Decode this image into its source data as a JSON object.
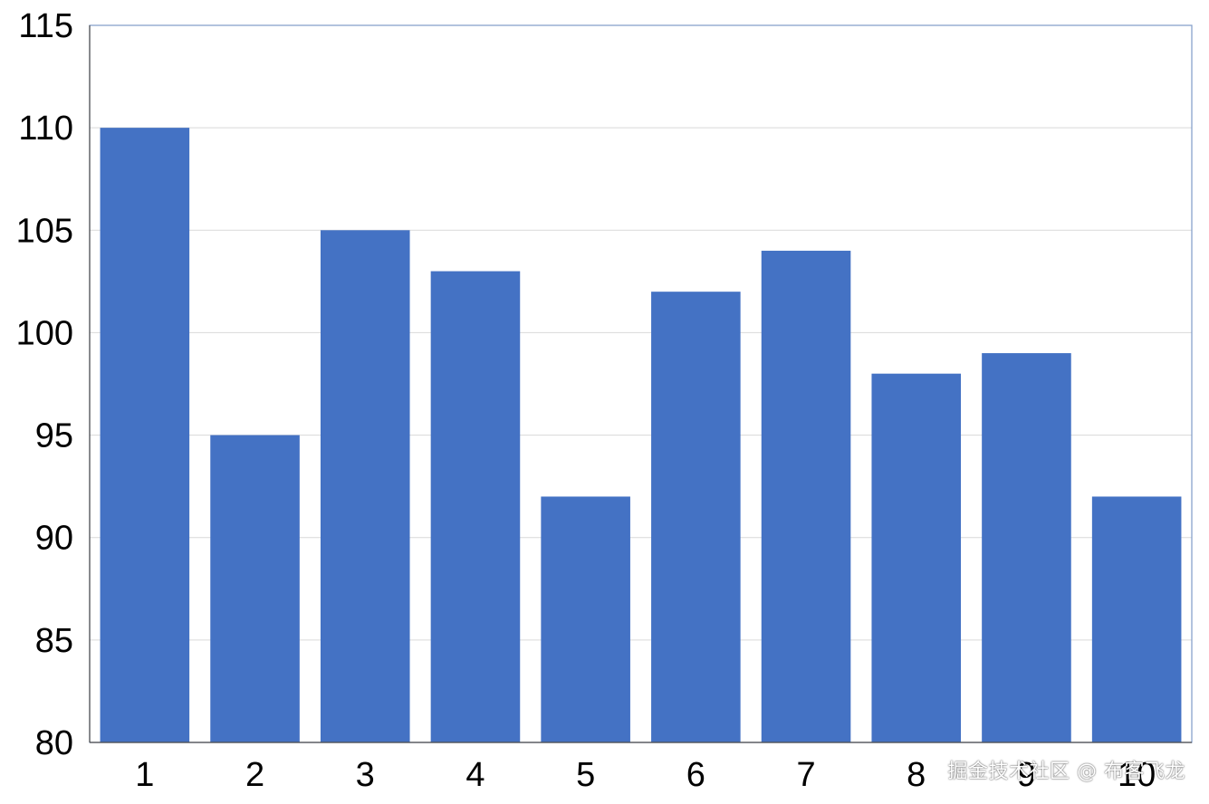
{
  "chart_data": {
    "type": "bar",
    "title": "",
    "xlabel": "",
    "ylabel": "",
    "categories": [
      "1",
      "2",
      "3",
      "4",
      "5",
      "6",
      "7",
      "8",
      "9",
      "10"
    ],
    "values": [
      110,
      95,
      105,
      103,
      92,
      102,
      104,
      98,
      99,
      92
    ],
    "ylim": [
      80,
      115
    ],
    "yticks": [
      80,
      85,
      90,
      95,
      100,
      105,
      110,
      115
    ],
    "grid": true,
    "legend": "none",
    "colors": {
      "bar": "#4472C4",
      "grid": "#D9D9D9",
      "axis": "#7F9BC8",
      "text": "#000000"
    }
  },
  "watermark": {
    "text": "掘金技术社区 @ 布客飞龙"
  }
}
